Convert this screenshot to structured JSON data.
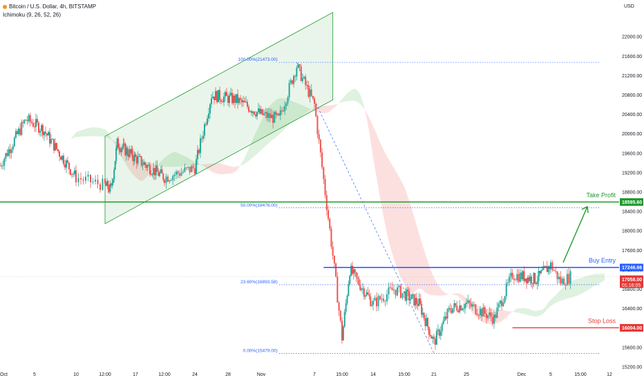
{
  "header": {
    "title": "Bitcoin / U.S. Dollar, 4h, BITSTAMP",
    "indicator": "Ichimoku (9, 26, 52, 26)"
  },
  "colors": {
    "up": "#26a69a",
    "down": "#ef5350",
    "green_line": "#1e9a2c",
    "blue_line": "#2962ff",
    "red_line": "#e53935",
    "fib": "#2962ff"
  },
  "chart_data": {
    "type": "candlestick",
    "currency_label": "USD",
    "ylim": [
      15100,
      22600
    ],
    "y_ticks": [
      15200,
      15600,
      16000,
      16400,
      16800,
      17200,
      17600,
      18000,
      18400,
      18800,
      19200,
      19600,
      20000,
      20400,
      20800,
      21200,
      21600,
      22000
    ],
    "x_ticks": [
      "Oct",
      "5",
      "10",
      "12:00",
      "17",
      "12:00",
      "24",
      "28",
      "Nov",
      "7",
      "15:00",
      "14",
      "15:00",
      "21",
      "25",
      "Dec",
      "5",
      "15:00",
      "12"
    ],
    "price_path": [
      {
        "date": "Oct 1",
        "price": 19350
      },
      {
        "date": "Oct 4",
        "price": 20300
      },
      {
        "date": "Oct 6",
        "price": 20100
      },
      {
        "date": "Oct 10",
        "price": 19100
      },
      {
        "date": "Oct 13",
        "price": 18850
      },
      {
        "date": "Oct 14",
        "price": 19800
      },
      {
        "date": "Oct 17",
        "price": 19500
      },
      {
        "date": "Oct 21",
        "price": 19100
      },
      {
        "date": "Oct 24",
        "price": 19300
      },
      {
        "date": "Oct 26",
        "price": 20800
      },
      {
        "date": "Oct 29",
        "price": 20700
      },
      {
        "date": "Nov 1",
        "price": 20400
      },
      {
        "date": "Nov 3",
        "price": 20300
      },
      {
        "date": "Nov 5",
        "price": 21400
      },
      {
        "date": "Nov 7",
        "price": 20600
      },
      {
        "date": "Nov 9",
        "price": 17500
      },
      {
        "date": "Nov 10",
        "price": 15800
      },
      {
        "date": "Nov 11",
        "price": 17200
      },
      {
        "date": "Nov 14",
        "price": 16500
      },
      {
        "date": "Nov 16",
        "price": 16800
      },
      {
        "date": "Nov 19",
        "price": 16500
      },
      {
        "date": "Nov 21",
        "price": 15700
      },
      {
        "date": "Nov 23",
        "price": 16400
      },
      {
        "date": "Nov 25",
        "price": 16500
      },
      {
        "date": "Nov 28",
        "price": 16200
      },
      {
        "date": "Nov 30",
        "price": 17100
      },
      {
        "date": "Dec 3",
        "price": 17000
      },
      {
        "date": "Dec 5",
        "price": 17300
      },
      {
        "date": "Dec 6",
        "price": 16950
      },
      {
        "date": "Dec 7",
        "price": 17058
      }
    ],
    "levels": {
      "take_profit": {
        "label": "Take Profit",
        "price": 18595.6,
        "tag": "18595.60"
      },
      "buy_entry": {
        "label": "Buy Entry",
        "price": 17246.66,
        "tag": "17246.66"
      },
      "stop_loss": {
        "label": "Stop Loss",
        "price": 16004.0,
        "tag": "16004.00"
      },
      "current": {
        "price": 17058.0,
        "tag": "17058.00",
        "countdown": "01:16:05"
      }
    },
    "fib_levels": [
      {
        "label": "100.00%(21473.00)",
        "price": 21473
      },
      {
        "label": "50.00%(18476.00)",
        "price": 18476
      },
      {
        "label": "23.60%(16893.58)",
        "price": 16893.58
      },
      {
        "label": "0.00%(15479.00)",
        "price": 15479
      }
    ]
  }
}
